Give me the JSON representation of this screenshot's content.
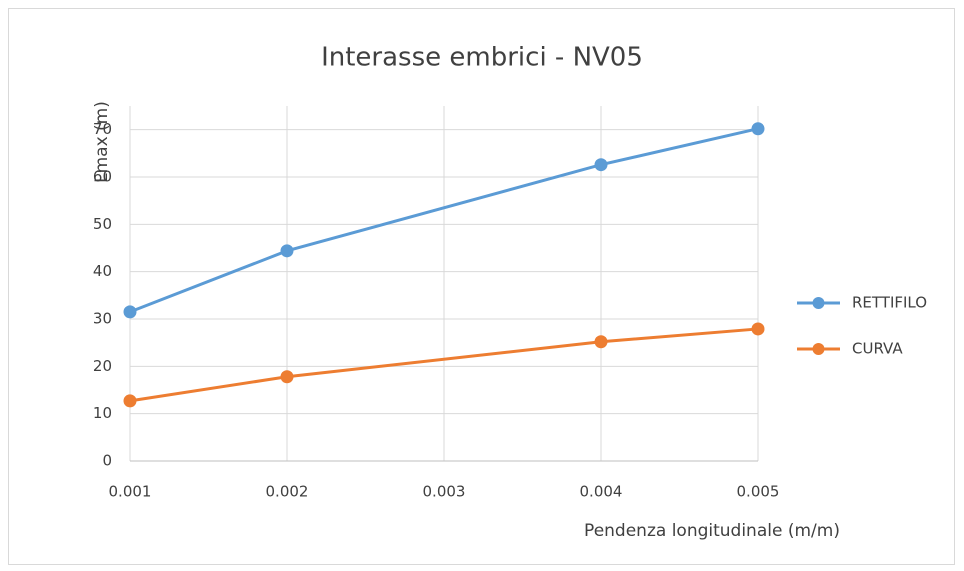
{
  "chart_data": {
    "type": "line",
    "title": "Interasse embrici - NV05",
    "x_label": "Pendenza longitudinale (m/m)",
    "y_label": "Lmax (m)",
    "x": [
      0.001,
      0.002,
      0.004,
      0.005
    ],
    "series": [
      {
        "name": "RETTIFILO",
        "color": "#5b9bd5",
        "values": [
          31.5,
          44.4,
          62.6,
          70.2
        ]
      },
      {
        "name": "CURVA",
        "color": "#ed7d31",
        "values": [
          12.7,
          17.8,
          25.2,
          27.9
        ]
      }
    ],
    "xlim": [
      0.001,
      0.005
    ],
    "xticks": [
      0.001,
      0.002,
      0.003,
      0.004,
      0.005
    ],
    "ylim": [
      0,
      75
    ],
    "yticks": [
      0,
      10,
      20,
      30,
      40,
      50,
      60,
      70
    ],
    "grid": true,
    "legend": "right"
  }
}
